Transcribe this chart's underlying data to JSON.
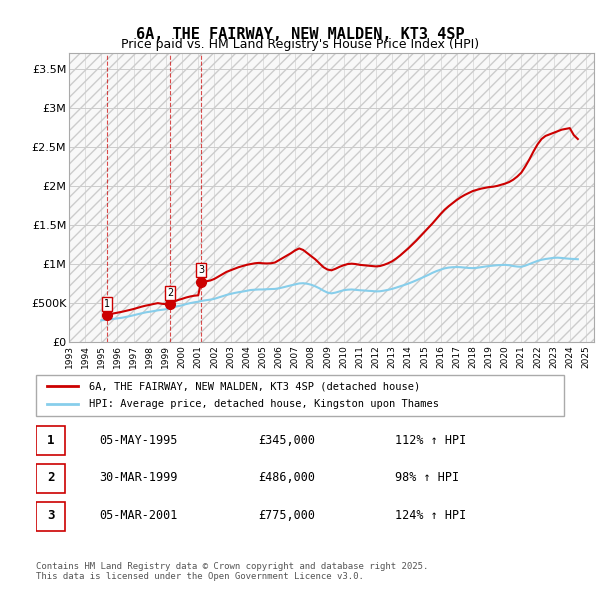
{
  "title": "6A, THE FAIRWAY, NEW MALDEN, KT3 4SP",
  "subtitle": "Price paid vs. HM Land Registry's House Price Index (HPI)",
  "ylabel_ticks": [
    "£0",
    "£500K",
    "£1M",
    "£1.5M",
    "£2M",
    "£2.5M",
    "£3M",
    "£3.5M"
  ],
  "ytick_vals": [
    0,
    500000,
    1000000,
    1500000,
    2000000,
    2500000,
    3000000,
    3500000
  ],
  "ylim": [
    0,
    3700000
  ],
  "xlim_start": 1993.0,
  "xlim_end": 2025.5,
  "transactions": [
    {
      "num": 1,
      "date": "05-MAY-1995",
      "price": 345000,
      "year": 1995.35,
      "hpi_pct": "112%",
      "label": "1"
    },
    {
      "num": 2,
      "date": "30-MAR-1999",
      "price": 486000,
      "year": 1999.25,
      "hpi_pct": "98%",
      "label": "2"
    },
    {
      "num": 3,
      "date": "05-MAR-2001",
      "price": 775000,
      "year": 2001.18,
      "hpi_pct": "124%",
      "label": "3"
    }
  ],
  "hpi_line_color": "#87CEEB",
  "price_line_color": "#CC0000",
  "marker_color": "#CC0000",
  "background_color": "#ffffff",
  "plot_bg_color": "#ffffff",
  "hatch_color": "#d0d0d0",
  "grid_color": "#d0d0d0",
  "legend_label_price": "6A, THE FAIRWAY, NEW MALDEN, KT3 4SP (detached house)",
  "legend_label_hpi": "HPI: Average price, detached house, Kingston upon Thames",
  "footer_text": "Contains HM Land Registry data © Crown copyright and database right 2025.\nThis data is licensed under the Open Government Licence v3.0.",
  "hpi_data_x": [
    1995.0,
    1995.25,
    1995.5,
    1995.75,
    1996.0,
    1996.25,
    1996.5,
    1996.75,
    1997.0,
    1997.25,
    1997.5,
    1997.75,
    1998.0,
    1998.25,
    1998.5,
    1998.75,
    1999.0,
    1999.25,
    1999.5,
    1999.75,
    2000.0,
    2000.25,
    2000.5,
    2000.75,
    2001.0,
    2001.25,
    2001.5,
    2001.75,
    2002.0,
    2002.25,
    2002.5,
    2002.75,
    2003.0,
    2003.25,
    2003.5,
    2003.75,
    2004.0,
    2004.25,
    2004.5,
    2004.75,
    2005.0,
    2005.25,
    2005.5,
    2005.75,
    2006.0,
    2006.25,
    2006.5,
    2006.75,
    2007.0,
    2007.25,
    2007.5,
    2007.75,
    2008.0,
    2008.25,
    2008.5,
    2008.75,
    2009.0,
    2009.25,
    2009.5,
    2009.75,
    2010.0,
    2010.25,
    2010.5,
    2010.75,
    2011.0,
    2011.25,
    2011.5,
    2011.75,
    2012.0,
    2012.25,
    2012.5,
    2012.75,
    2013.0,
    2013.25,
    2013.5,
    2013.75,
    2014.0,
    2014.25,
    2014.5,
    2014.75,
    2015.0,
    2015.25,
    2015.5,
    2015.75,
    2016.0,
    2016.25,
    2016.5,
    2016.75,
    2017.0,
    2017.25,
    2017.5,
    2017.75,
    2018.0,
    2018.25,
    2018.5,
    2018.75,
    2019.0,
    2019.25,
    2019.5,
    2019.75,
    2020.0,
    2020.25,
    2020.5,
    2020.75,
    2021.0,
    2021.25,
    2021.5,
    2021.75,
    2022.0,
    2022.25,
    2022.5,
    2022.75,
    2023.0,
    2023.25,
    2023.5,
    2023.75,
    2024.0,
    2024.25,
    2024.5
  ],
  "hpi_data_y": [
    280000,
    285000,
    292000,
    298000,
    305000,
    312000,
    322000,
    333000,
    345000,
    358000,
    370000,
    382000,
    390000,
    398000,
    408000,
    415000,
    422000,
    435000,
    450000,
    462000,
    472000,
    488000,
    500000,
    510000,
    518000,
    530000,
    538000,
    545000,
    555000,
    572000,
    588000,
    605000,
    618000,
    630000,
    640000,
    648000,
    658000,
    668000,
    672000,
    675000,
    675000,
    678000,
    680000,
    682000,
    690000,
    702000,
    715000,
    728000,
    740000,
    752000,
    755000,
    748000,
    735000,
    715000,
    690000,
    660000,
    635000,
    625000,
    635000,
    650000,
    665000,
    672000,
    675000,
    670000,
    665000,
    662000,
    658000,
    655000,
    650000,
    652000,
    660000,
    670000,
    682000,
    698000,
    715000,
    732000,
    750000,
    770000,
    792000,
    815000,
    838000,
    862000,
    888000,
    910000,
    928000,
    945000,
    955000,
    960000,
    962000,
    960000,
    955000,
    950000,
    948000,
    952000,
    960000,
    968000,
    975000,
    980000,
    985000,
    988000,
    990000,
    985000,
    975000,
    968000,
    965000,
    980000,
    1000000,
    1020000,
    1040000,
    1055000,
    1065000,
    1072000,
    1080000,
    1082000,
    1078000,
    1072000,
    1068000,
    1065000,
    1062000
  ],
  "price_data_x": [
    1995.35,
    1995.5,
    1995.75,
    1996.0,
    1996.25,
    1996.5,
    1996.75,
    1997.0,
    1997.25,
    1997.5,
    1997.75,
    1998.0,
    1998.25,
    1998.5,
    1998.75,
    1999.0,
    1999.25,
    1999.5,
    1999.75,
    2000.0,
    2000.25,
    2000.5,
    2000.75,
    2001.0,
    2001.18,
    2001.5,
    2001.75,
    2002.0,
    2002.25,
    2002.5,
    2002.75,
    2003.0,
    2003.25,
    2003.5,
    2003.75,
    2004.0,
    2004.25,
    2004.5,
    2004.75,
    2005.0,
    2005.25,
    2005.5,
    2005.75,
    2006.0,
    2006.25,
    2006.5,
    2006.75,
    2007.0,
    2007.25,
    2007.5,
    2007.75,
    2008.0,
    2008.25,
    2008.5,
    2008.75,
    2009.0,
    2009.25,
    2009.5,
    2009.75,
    2010.0,
    2010.25,
    2010.5,
    2010.75,
    2011.0,
    2011.25,
    2011.5,
    2011.75,
    2012.0,
    2012.25,
    2012.5,
    2012.75,
    2013.0,
    2013.25,
    2013.5,
    2013.75,
    2014.0,
    2014.25,
    2014.5,
    2014.75,
    2015.0,
    2015.25,
    2015.5,
    2015.75,
    2016.0,
    2016.25,
    2016.5,
    2016.75,
    2017.0,
    2017.25,
    2017.5,
    2017.75,
    2018.0,
    2018.25,
    2018.5,
    2018.75,
    2019.0,
    2019.25,
    2019.5,
    2019.75,
    2020.0,
    2020.25,
    2020.5,
    2020.75,
    2021.0,
    2021.25,
    2021.5,
    2021.75,
    2022.0,
    2022.25,
    2022.5,
    2022.75,
    2023.0,
    2023.25,
    2023.5,
    2023.75,
    2024.0,
    2024.25,
    2024.5
  ],
  "price_data_y": [
    345000,
    355000,
    368000,
    378000,
    388000,
    400000,
    412000,
    425000,
    440000,
    455000,
    468000,
    478000,
    490000,
    500000,
    492000,
    486000,
    500000,
    520000,
    540000,
    555000,
    572000,
    585000,
    595000,
    600000,
    775000,
    780000,
    790000,
    810000,
    840000,
    870000,
    900000,
    920000,
    940000,
    960000,
    975000,
    990000,
    1000000,
    1010000,
    1015000,
    1010000,
    1008000,
    1010000,
    1020000,
    1050000,
    1080000,
    1110000,
    1140000,
    1175000,
    1200000,
    1180000,
    1140000,
    1100000,
    1060000,
    1010000,
    960000,
    930000,
    920000,
    940000,
    965000,
    985000,
    1000000,
    1005000,
    1000000,
    990000,
    985000,
    980000,
    975000,
    970000,
    975000,
    990000,
    1010000,
    1035000,
    1070000,
    1110000,
    1155000,
    1200000,
    1250000,
    1300000,
    1355000,
    1410000,
    1465000,
    1520000,
    1580000,
    1640000,
    1695000,
    1740000,
    1780000,
    1820000,
    1855000,
    1885000,
    1910000,
    1935000,
    1950000,
    1965000,
    1975000,
    1985000,
    1990000,
    2000000,
    2015000,
    2030000,
    2050000,
    2080000,
    2120000,
    2170000,
    2250000,
    2340000,
    2440000,
    2530000,
    2600000,
    2640000,
    2660000,
    2680000,
    2700000,
    2720000,
    2730000,
    2740000,
    2650000,
    2600000
  ]
}
